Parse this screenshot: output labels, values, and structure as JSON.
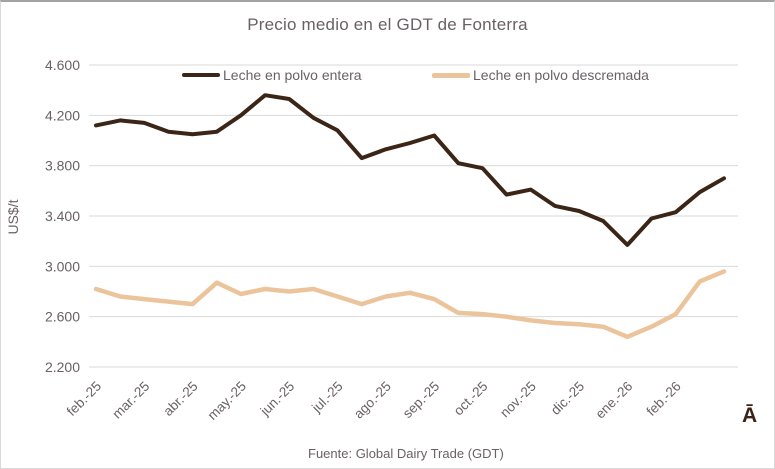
{
  "title": "Precio medio en el GDT de Fonterra",
  "source_note": "Fuente: Global Dairy Trade (GDT)",
  "watermark": "Ā",
  "chart_data": {
    "type": "line",
    "title": "Precio medio en el GDT de Fonterra",
    "xlabel": "",
    "ylabel": "US$/t",
    "ylim": [
      2200,
      4600
    ],
    "ytick_step": 400,
    "ytick_labels": [
      "4.600",
      "4.200",
      "3.800",
      "3.400",
      "3.000",
      "2.600",
      "2.200"
    ],
    "x_labels": [
      "feb.-25",
      "mar.-25",
      "abr.-25",
      "may.-25",
      "jun.-25",
      "jul.-25",
      "ago.-25",
      "sep.-25",
      "oct.-25",
      "nov.-25",
      "dic.-25",
      "ene.-26",
      "feb.-26"
    ],
    "points_per_month": 2,
    "grid": true,
    "legend_position": "top",
    "axis_text_color": "#6a6167",
    "gridline_color": "#d9d9d9",
    "series": [
      {
        "name": "Leche en polvo entera",
        "color": "#3a2517",
        "values": [
          4120,
          4160,
          4140,
          4070,
          4050,
          4070,
          4200,
          4360,
          4330,
          4180,
          4080,
          3860,
          3930,
          3980,
          4040,
          3820,
          3780,
          3570,
          3610,
          3480,
          3440,
          3360,
          3170,
          3380,
          3430,
          3590,
          3700
        ]
      },
      {
        "name": "Leche en polvo descremada",
        "color": "#ecc49c",
        "values": [
          2820,
          2760,
          2740,
          2720,
          2700,
          2870,
          2780,
          2820,
          2800,
          2820,
          2760,
          2700,
          2760,
          2790,
          2740,
          2630,
          2620,
          2600,
          2570,
          2550,
          2540,
          2520,
          2440,
          2520,
          2620,
          2880,
          2960
        ]
      }
    ]
  }
}
